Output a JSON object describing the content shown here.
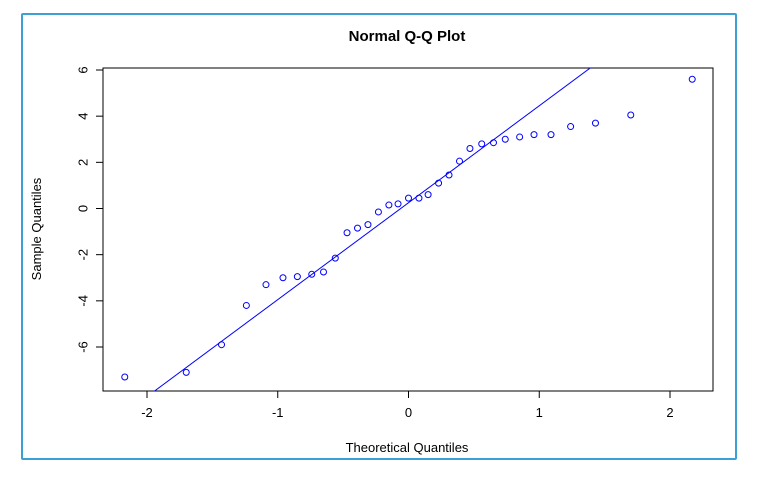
{
  "chart_data": {
    "type": "scatter",
    "title": "Normal Q-Q Plot",
    "xlabel": "Theoretical Quantiles",
    "ylabel": "Sample Quantiles",
    "xlim": [
      -2.35,
      2.35
    ],
    "ylim": [
      -7.9,
      6.2
    ],
    "xticks": [
      -2,
      -1,
      0,
      1,
      2
    ],
    "yticks": [
      -6,
      -4,
      -2,
      0,
      2,
      4,
      6
    ],
    "grid": false,
    "point_color": "#0000ff",
    "line_color": "#0000ff",
    "points": [
      {
        "x": -2.17,
        "y": -7.3
      },
      {
        "x": -1.7,
        "y": -7.1
      },
      {
        "x": -1.43,
        "y": -5.9
      },
      {
        "x": -1.24,
        "y": -4.2
      },
      {
        "x": -1.09,
        "y": -3.3
      },
      {
        "x": -0.96,
        "y": -3.0
      },
      {
        "x": -0.85,
        "y": -2.95
      },
      {
        "x": -0.74,
        "y": -2.85
      },
      {
        "x": -0.65,
        "y": -2.75
      },
      {
        "x": -0.56,
        "y": -2.15
      },
      {
        "x": -0.47,
        "y": -1.05
      },
      {
        "x": -0.39,
        "y": -0.85
      },
      {
        "x": -0.31,
        "y": -0.7
      },
      {
        "x": -0.23,
        "y": -0.15
      },
      {
        "x": -0.15,
        "y": 0.15
      },
      {
        "x": -0.08,
        "y": 0.2
      },
      {
        "x": 0.0,
        "y": 0.45
      },
      {
        "x": 0.08,
        "y": 0.45
      },
      {
        "x": 0.15,
        "y": 0.6
      },
      {
        "x": 0.23,
        "y": 1.1
      },
      {
        "x": 0.31,
        "y": 1.45
      },
      {
        "x": 0.39,
        "y": 2.05
      },
      {
        "x": 0.47,
        "y": 2.6
      },
      {
        "x": 0.56,
        "y": 2.8
      },
      {
        "x": 0.65,
        "y": 2.85
      },
      {
        "x": 0.74,
        "y": 3.0
      },
      {
        "x": 0.85,
        "y": 3.1
      },
      {
        "x": 0.96,
        "y": 3.2
      },
      {
        "x": 1.09,
        "y": 3.2
      },
      {
        "x": 1.24,
        "y": 3.55
      },
      {
        "x": 1.43,
        "y": 3.7
      },
      {
        "x": 1.7,
        "y": 4.05
      },
      {
        "x": 2.17,
        "y": 5.6
      }
    ],
    "reference_line": {
      "intercept": 0.25,
      "slope": 4.2
    }
  }
}
